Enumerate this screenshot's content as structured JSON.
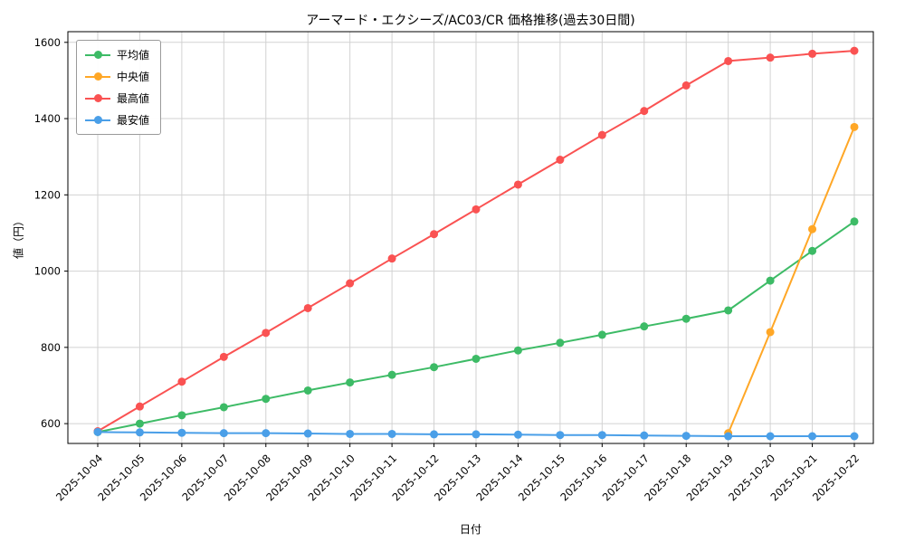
{
  "chart_data": {
    "type": "line",
    "title": "アーマード・エクシーズ/AC03/CR 価格推移(過去30日間)",
    "xlabel": "日付",
    "ylabel": "値（円）",
    "grid": true,
    "legend_position": "upper left",
    "x": [
      "2025-10-04",
      "2025-10-05",
      "2025-10-06",
      "2025-10-07",
      "2025-10-08",
      "2025-10-09",
      "2025-10-10",
      "2025-10-11",
      "2025-10-12",
      "2025-10-13",
      "2025-10-14",
      "2025-10-15",
      "2025-10-16",
      "2025-10-17",
      "2025-10-18",
      "2025-10-19",
      "2025-10-20",
      "2025-10-21",
      "2025-10-22"
    ],
    "y_ticks": [
      600,
      800,
      1000,
      1200,
      1400,
      1600
    ],
    "ylim": [
      548,
      1628
    ],
    "series": [
      {
        "name": "平均値",
        "color": "#3dbb66",
        "values": [
          578,
          600,
          622,
          643,
          665,
          687,
          708,
          728,
          748,
          770,
          792,
          812,
          833,
          855,
          875,
          897,
          975,
          1053,
          1130
        ]
      },
      {
        "name": "中央値",
        "color": "#ffa726",
        "values": [
          null,
          null,
          null,
          null,
          null,
          null,
          null,
          null,
          null,
          null,
          null,
          null,
          null,
          null,
          null,
          575,
          840,
          1110,
          1378
        ]
      },
      {
        "name": "最高値",
        "color": "#fa5252",
        "values": [
          580,
          645,
          710,
          775,
          838,
          903,
          968,
          1033,
          1097,
          1162,
          1227,
          1292,
          1357,
          1420,
          1487,
          1551,
          1560,
          1570,
          1578
        ]
      },
      {
        "name": "最安値",
        "color": "#4a9fe8",
        "values": [
          578,
          577,
          576,
          575,
          575,
          574,
          573,
          573,
          572,
          572,
          571,
          570,
          570,
          569,
          568,
          567,
          567,
          567,
          567
        ]
      }
    ]
  }
}
